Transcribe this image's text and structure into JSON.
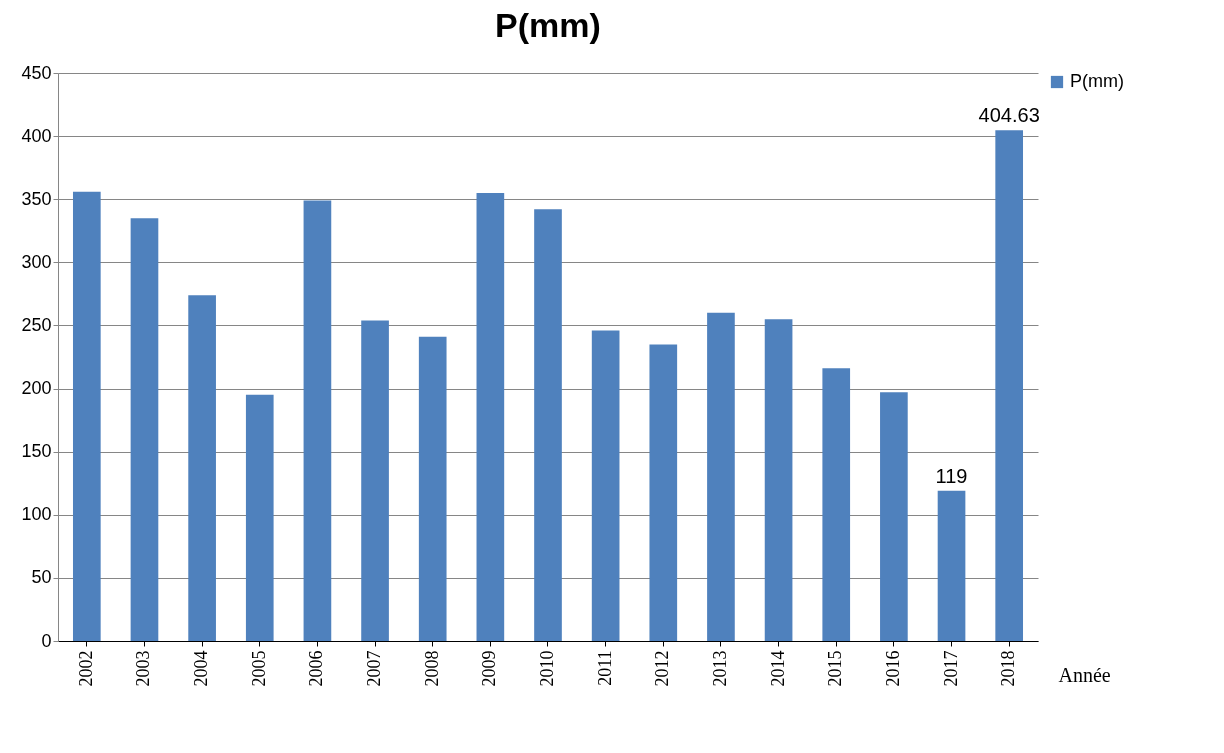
{
  "chart_data": {
    "type": "bar",
    "title": "P(mm)",
    "xlabel": "Année",
    "categories": [
      "2002",
      "2003",
      "2004",
      "2005",
      "2006",
      "2007",
      "2008",
      "2009",
      "2010",
      "2011",
      "2012",
      "2013",
      "2014",
      "2015",
      "2016",
      "2017",
      "2018"
    ],
    "series": [
      {
        "name": "P(mm)",
        "color": "#4f81bd",
        "values": [
          356,
          335,
          274,
          195,
          349,
          254,
          241,
          355,
          342,
          246,
          235,
          260,
          255,
          216,
          197,
          119,
          404.63
        ],
        "value_labels": [
          null,
          null,
          null,
          null,
          null,
          null,
          null,
          null,
          null,
          null,
          null,
          null,
          null,
          null,
          null,
          "119",
          "404.63"
        ]
      }
    ],
    "ylim": [
      0,
      450
    ],
    "yticks": [
      0,
      50,
      100,
      150,
      200,
      250,
      300,
      350,
      400,
      450
    ],
    "grid": "y",
    "legend": "right"
  }
}
